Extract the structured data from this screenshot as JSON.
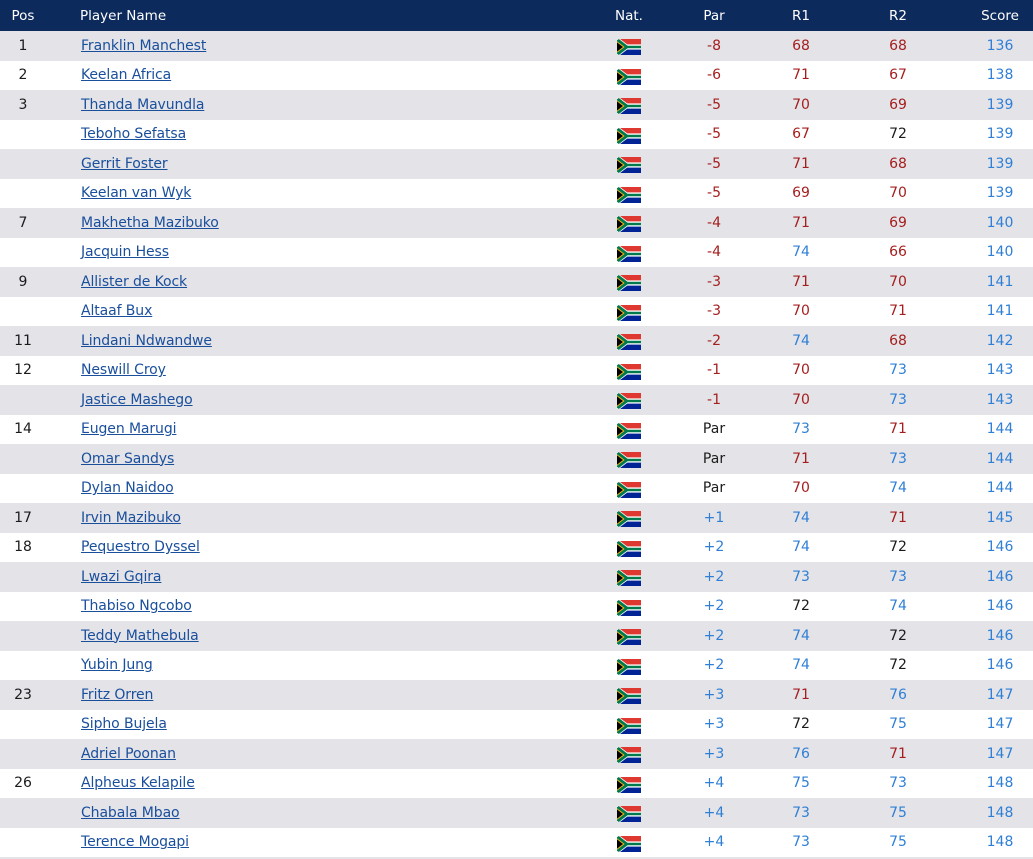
{
  "header": {
    "pos": "Pos",
    "name": "Player Name",
    "nat": "Nat.",
    "par": "Par",
    "r1": "R1",
    "r2": "R2",
    "score": "Score"
  },
  "colors": {
    "header_bg": "#0d2a5c",
    "under_par": "#a51e1e",
    "over_par": "#2f7fd6",
    "stripe": "#e3e3e8",
    "link": "#1a4f9c"
  },
  "flag_icon": "south-africa-flag-icon",
  "rows": [
    {
      "pos": "1",
      "name": "Franklin Manchest",
      "par": "-8",
      "r1": "68",
      "r2": "68",
      "score": "136"
    },
    {
      "pos": "2",
      "name": "Keelan Africa",
      "par": "-6",
      "r1": "71",
      "r2": "67",
      "score": "138"
    },
    {
      "pos": "3",
      "name": "Thanda Mavundla",
      "par": "-5",
      "r1": "70",
      "r2": "69",
      "score": "139"
    },
    {
      "pos": "",
      "name": "Teboho Sefatsa",
      "par": "-5",
      "r1": "67",
      "r2": "72",
      "score": "139"
    },
    {
      "pos": "",
      "name": "Gerrit Foster",
      "par": "-5",
      "r1": "71",
      "r2": "68",
      "score": "139"
    },
    {
      "pos": "",
      "name": "Keelan van Wyk",
      "par": "-5",
      "r1": "69",
      "r2": "70",
      "score": "139"
    },
    {
      "pos": "7",
      "name": "Makhetha Mazibuko",
      "par": "-4",
      "r1": "71",
      "r2": "69",
      "score": "140"
    },
    {
      "pos": "",
      "name": "Jacquin Hess",
      "par": "-4",
      "r1": "74",
      "r2": "66",
      "score": "140"
    },
    {
      "pos": "9",
      "name": "Allister de Kock",
      "par": "-3",
      "r1": "71",
      "r2": "70",
      "score": "141"
    },
    {
      "pos": "",
      "name": "Altaaf Bux",
      "par": "-3",
      "r1": "70",
      "r2": "71",
      "score": "141"
    },
    {
      "pos": "11",
      "name": "Lindani Ndwandwe",
      "par": "-2",
      "r1": "74",
      "r2": "68",
      "score": "142"
    },
    {
      "pos": "12",
      "name": "Neswill Croy",
      "par": "-1",
      "r1": "70",
      "r2": "73",
      "score": "143"
    },
    {
      "pos": "",
      "name": "Jastice Mashego",
      "par": "-1",
      "r1": "70",
      "r2": "73",
      "score": "143"
    },
    {
      "pos": "14",
      "name": "Eugen Marugi",
      "par": "Par",
      "r1": "73",
      "r2": "71",
      "score": "144"
    },
    {
      "pos": "",
      "name": "Omar Sandys",
      "par": "Par",
      "r1": "71",
      "r2": "73",
      "score": "144"
    },
    {
      "pos": "",
      "name": "Dylan Naidoo",
      "par": "Par",
      "r1": "70",
      "r2": "74",
      "score": "144"
    },
    {
      "pos": "17",
      "name": "Irvin Mazibuko",
      "par": "+1",
      "r1": "74",
      "r2": "71",
      "score": "145"
    },
    {
      "pos": "18",
      "name": "Pequestro Dyssel",
      "par": "+2",
      "r1": "74",
      "r2": "72",
      "score": "146"
    },
    {
      "pos": "",
      "name": "Lwazi Gqira",
      "par": "+2",
      "r1": "73",
      "r2": "73",
      "score": "146"
    },
    {
      "pos": "",
      "name": "Thabiso Ngcobo",
      "par": "+2",
      "r1": "72",
      "r2": "74",
      "score": "146"
    },
    {
      "pos": "",
      "name": "Teddy Mathebula",
      "par": "+2",
      "r1": "74",
      "r2": "72",
      "score": "146"
    },
    {
      "pos": "",
      "name": "Yubin Jung",
      "par": "+2",
      "r1": "74",
      "r2": "72",
      "score": "146"
    },
    {
      "pos": "23",
      "name": "Fritz Orren",
      "par": "+3",
      "r1": "71",
      "r2": "76",
      "score": "147"
    },
    {
      "pos": "",
      "name": "Sipho Bujela",
      "par": "+3",
      "r1": "72",
      "r2": "75",
      "score": "147"
    },
    {
      "pos": "",
      "name": "Adriel Poonan",
      "par": "+3",
      "r1": "76",
      "r2": "71",
      "score": "147"
    },
    {
      "pos": "26",
      "name": "Alpheus Kelapile",
      "par": "+4",
      "r1": "75",
      "r2": "73",
      "score": "148"
    },
    {
      "pos": "",
      "name": "Chabala Mbao",
      "par": "+4",
      "r1": "73",
      "r2": "75",
      "score": "148"
    },
    {
      "pos": "",
      "name": "Terence Mogapi",
      "par": "+4",
      "r1": "73",
      "r2": "75",
      "score": "148"
    }
  ]
}
